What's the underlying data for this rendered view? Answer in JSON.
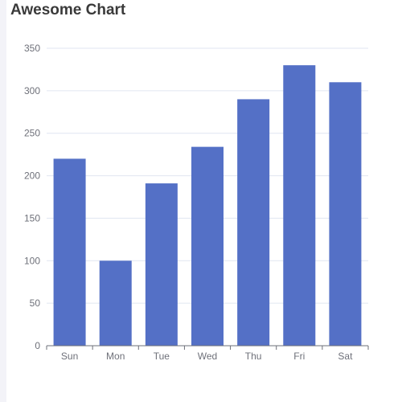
{
  "chart_data": {
    "type": "bar",
    "title": "Awesome Chart",
    "categories": [
      "Sun",
      "Mon",
      "Tue",
      "Wed",
      "Thu",
      "Fri",
      "Sat"
    ],
    "values": [
      220,
      100,
      191,
      234,
      290,
      330,
      310
    ],
    "ylim": [
      0,
      350
    ],
    "yticks": [
      "0",
      "50",
      "100",
      "150",
      "200",
      "250",
      "300",
      "350"
    ],
    "grid": true,
    "colors": {
      "bar": "#5470c6",
      "grid": "#e0e6f1",
      "axis": "#6e7079"
    }
  }
}
